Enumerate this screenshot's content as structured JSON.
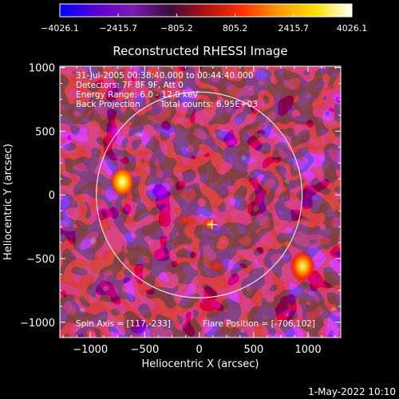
{
  "chart_data": {
    "type": "heatmap",
    "title": "Reconstructed RHESSI Image",
    "xlabel": "Heliocentric X (arcsec)",
    "ylabel": "Heliocentric Y (arcsec)",
    "xlim": [
      -1280,
      1300
    ],
    "ylim": [
      -1120,
      1010
    ],
    "x_ticks": [
      -1000,
      -500,
      0,
      500,
      1000
    ],
    "x_tick_labels": [
      "−1000",
      "−500",
      "0",
      "500",
      "1000"
    ],
    "y_ticks": [
      -1000,
      -500,
      0,
      500,
      1000
    ],
    "y_tick_labels": [
      "−1000",
      "−500",
      "0",
      "500",
      "1000"
    ],
    "colorbar": {
      "min": -4026.1,
      "max": 4026.1,
      "tick_values": [
        -4026.1,
        -2415.7,
        -805.2,
        805.2,
        2415.7,
        4026.1
      ],
      "tick_labels": [
        "−4026.1",
        "−2415.7",
        "−805.2",
        "805.2",
        "2415.7",
        "4026.1"
      ],
      "colors": [
        "#0000ff",
        "#5a00d0",
        "#7a1bb0",
        "#3a0d3a",
        "#b01010",
        "#ff3000",
        "#ff9a00",
        "#ffe000",
        "#ffffff"
      ]
    },
    "annotations": [
      "31-Jul-2005 00:38:40.000 to 00:44:40.000",
      "Detectors: 7F 8F 9F, Att 0",
      "Energy Range: 6.0 - 12.0 keV",
      "Back Projection",
      "Total counts: 6.95E+03",
      "Spin Axis = [117,-233]",
      "Flare Position = [-706,102]"
    ],
    "solar_limb": {
      "center": [
        0,
        0
      ],
      "radius": 945
    },
    "spin_axis_marker": [
      117,
      -233
    ],
    "hot_spots": [
      {
        "x": -706,
        "y": 102,
        "level": "peak"
      },
      {
        "x": 950,
        "y": -560,
        "level": "high"
      },
      {
        "x": 100,
        "y": -230,
        "level": "medium"
      },
      {
        "x": 160,
        "y": -560,
        "level": "low"
      },
      {
        "x": -130,
        "y": -200,
        "level": "low"
      }
    ]
  },
  "footer": {
    "timestamp": "1-May-2022 10:10"
  }
}
